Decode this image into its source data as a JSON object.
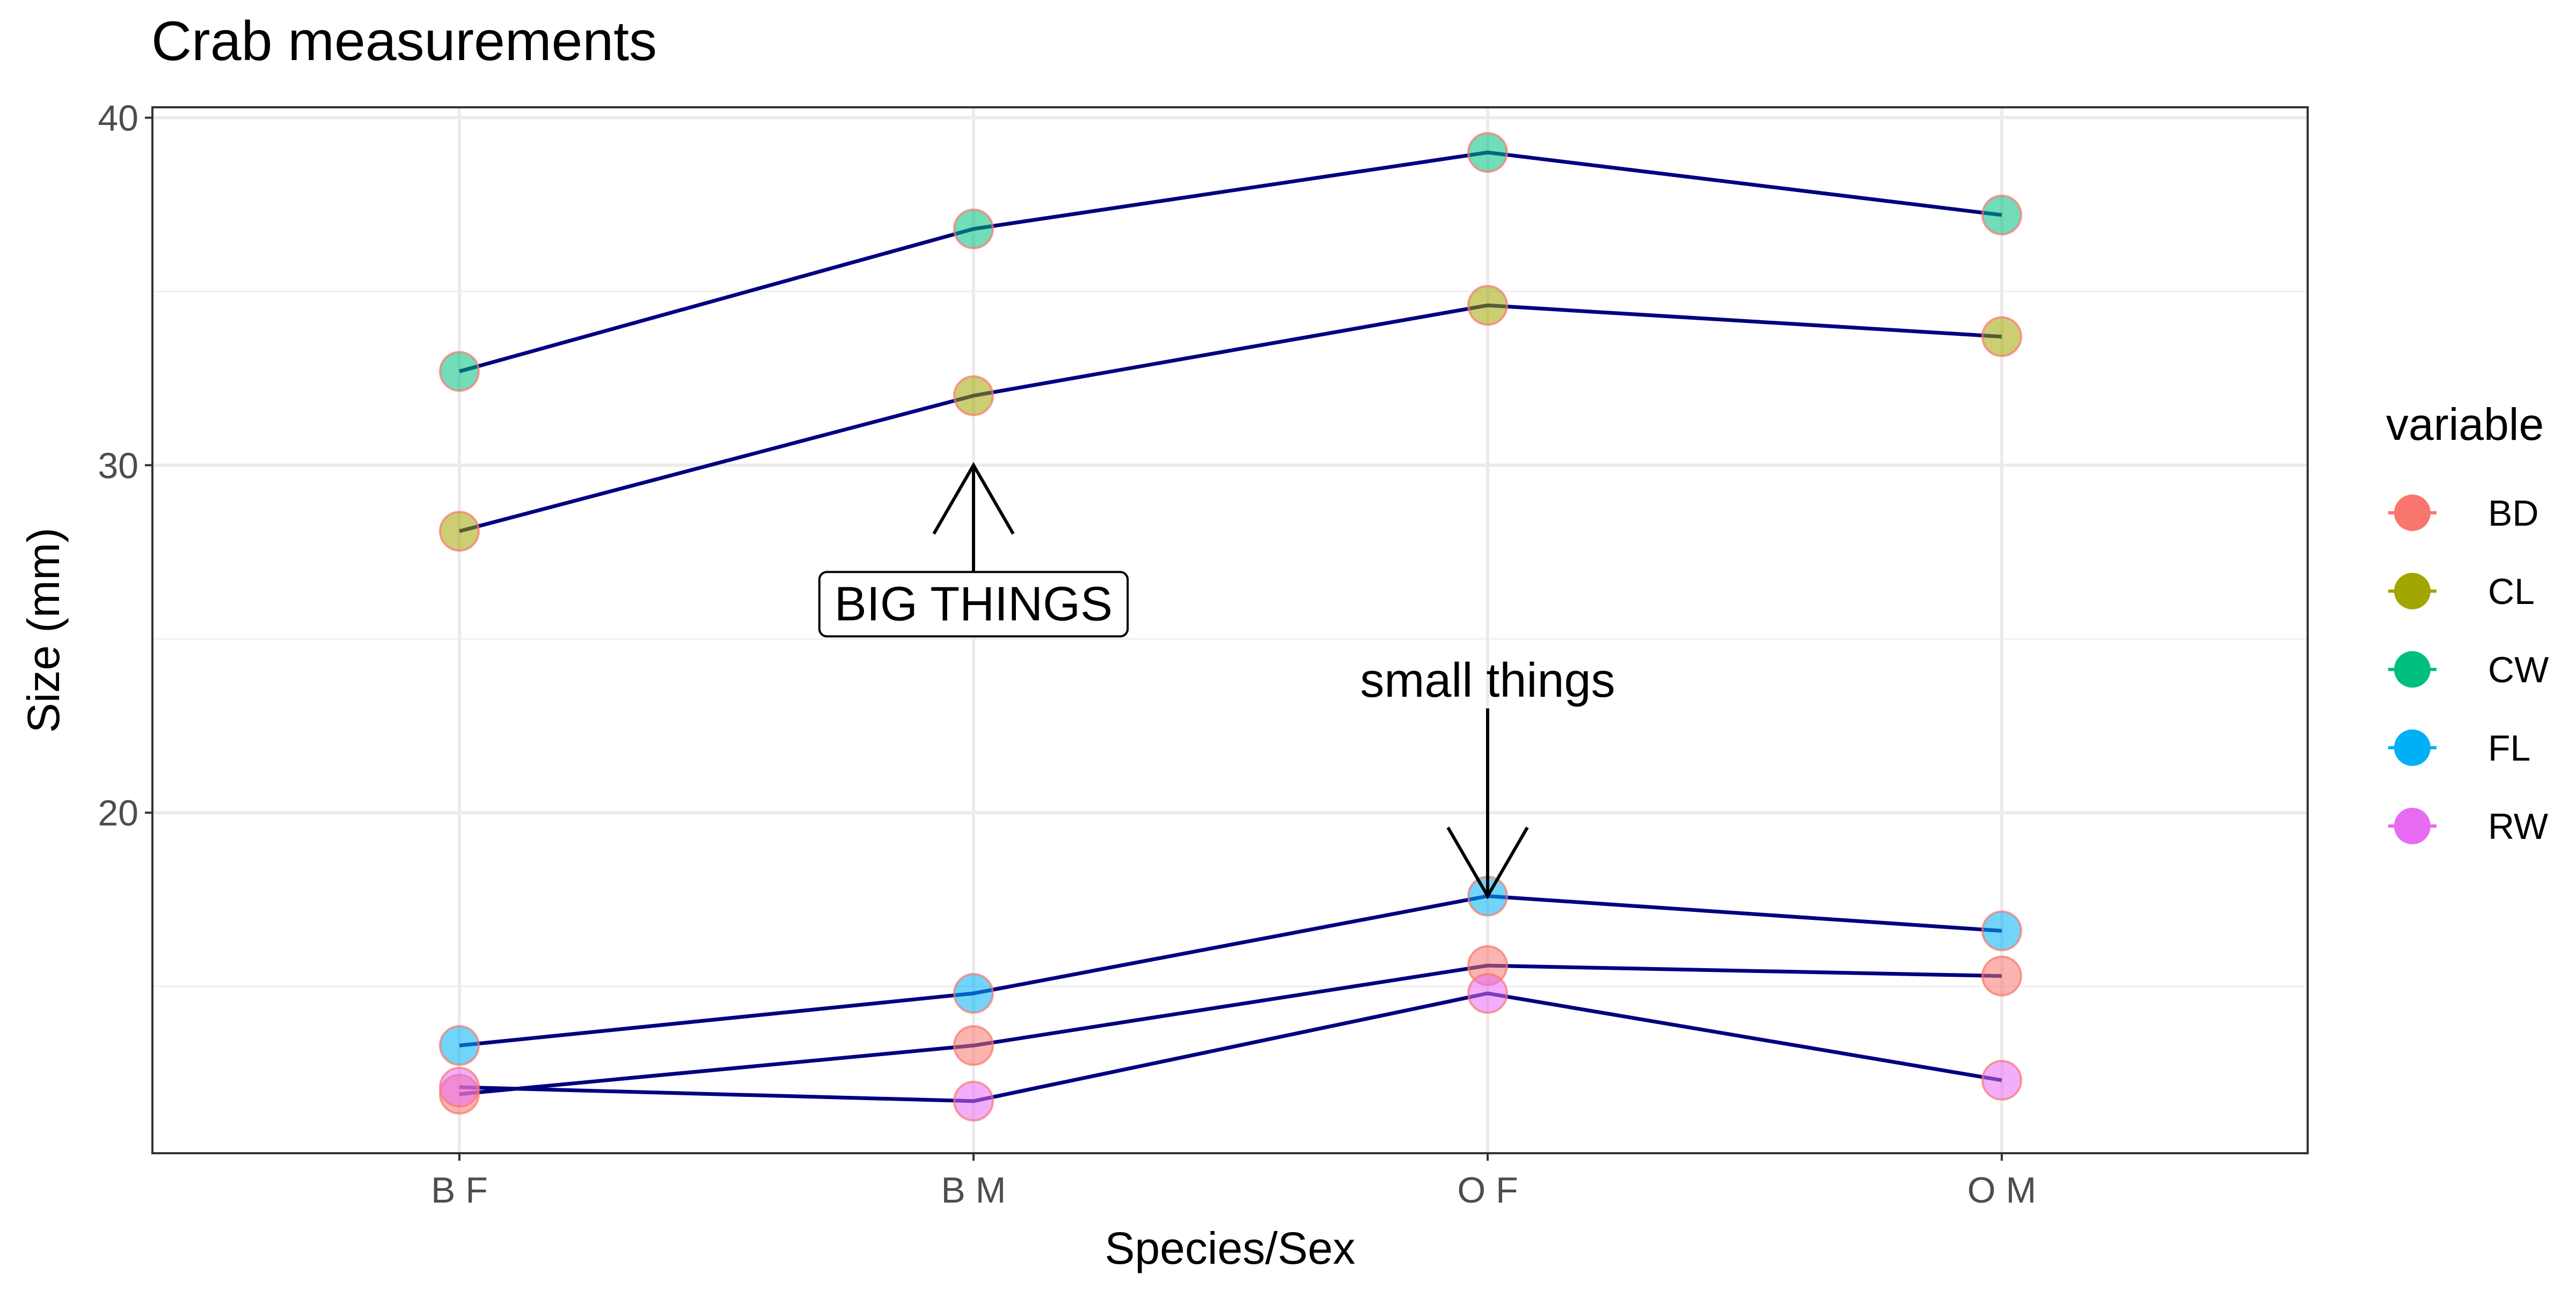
{
  "chart_data": {
    "type": "line",
    "title": "Crab measurements",
    "xlabel": "Species/Sex",
    "ylabel": "Size (mm)",
    "categories": [
      "B F",
      "B M",
      "O F",
      "O M"
    ],
    "ylim": [
      10.2,
      40.3
    ],
    "yticks": [
      20,
      30,
      40
    ],
    "grid": true,
    "legend": {
      "title": "variable",
      "position": "right",
      "entries": [
        {
          "name": "BD",
          "color": "#F8766D"
        },
        {
          "name": "CL",
          "color": "#A3A500"
        },
        {
          "name": "CW",
          "color": "#00BF7D"
        },
        {
          "name": "FL",
          "color": "#00B0F6"
        },
        {
          "name": "RW",
          "color": "#E76BF3"
        }
      ]
    },
    "line_color": "#000080",
    "series": [
      {
        "name": "CW",
        "values": [
          32.7,
          36.8,
          39.0,
          37.2
        ]
      },
      {
        "name": "CL",
        "values": [
          28.1,
          32.0,
          34.6,
          33.7
        ]
      },
      {
        "name": "FL",
        "values": [
          13.3,
          14.8,
          17.6,
          16.6
        ]
      },
      {
        "name": "BD",
        "values": [
          11.9,
          13.3,
          15.6,
          15.3
        ]
      },
      {
        "name": "RW",
        "values": [
          12.1,
          11.7,
          14.8,
          12.3
        ]
      }
    ],
    "annotations": [
      {
        "text": "BIG THINGS",
        "boxed": true,
        "x": "B M",
        "text_y": 26.0,
        "arrow_from_y": 26.9,
        "arrow_to_y": 30.0
      },
      {
        "text": "small things",
        "boxed": false,
        "x": "O F",
        "text_y": 23.8,
        "arrow_from_y": 23.0,
        "arrow_to_y": 17.6
      }
    ]
  }
}
